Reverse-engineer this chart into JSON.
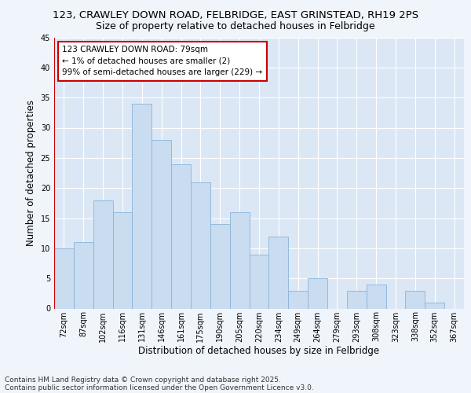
{
  "title_line1": "123, CRAWLEY DOWN ROAD, FELBRIDGE, EAST GRINSTEAD, RH19 2PS",
  "title_line2": "Size of property relative to detached houses in Felbridge",
  "xlabel": "Distribution of detached houses by size in Felbridge",
  "ylabel": "Number of detached properties",
  "categories": [
    "72sqm",
    "87sqm",
    "102sqm",
    "116sqm",
    "131sqm",
    "146sqm",
    "161sqm",
    "175sqm",
    "190sqm",
    "205sqm",
    "220sqm",
    "234sqm",
    "249sqm",
    "264sqm",
    "279sqm",
    "293sqm",
    "308sqm",
    "323sqm",
    "338sqm",
    "352sqm",
    "367sqm"
  ],
  "values": [
    10,
    11,
    18,
    16,
    34,
    28,
    24,
    21,
    14,
    16,
    9,
    12,
    3,
    5,
    0,
    3,
    4,
    0,
    3,
    1,
    0
  ],
  "bar_color": "#c9dcf0",
  "bar_edge_color": "#8ab4d8",
  "annotation_box_color": "#ffffff",
  "annotation_box_edge": "#cc0000",
  "annotation_text_line1": "123 CRAWLEY DOWN ROAD: 79sqm",
  "annotation_text_line2": "← 1% of detached houses are smaller (2)",
  "annotation_text_line3": "99% of semi-detached houses are larger (229) →",
  "ylim": [
    0,
    45
  ],
  "yticks": [
    0,
    5,
    10,
    15,
    20,
    25,
    30,
    35,
    40,
    45
  ],
  "background_color": "#dce7f5",
  "plot_bg_color": "#dce7f5",
  "fig_bg_color": "#f0f4fb",
  "grid_color": "#ffffff",
  "footer_line1": "Contains HM Land Registry data © Crown copyright and database right 2025.",
  "footer_line2": "Contains public sector information licensed under the Open Government Licence v3.0.",
  "title_fontsize": 9.5,
  "subtitle_fontsize": 9,
  "axis_label_fontsize": 8.5,
  "tick_fontsize": 7,
  "annotation_fontsize": 7.5,
  "footer_fontsize": 6.5
}
